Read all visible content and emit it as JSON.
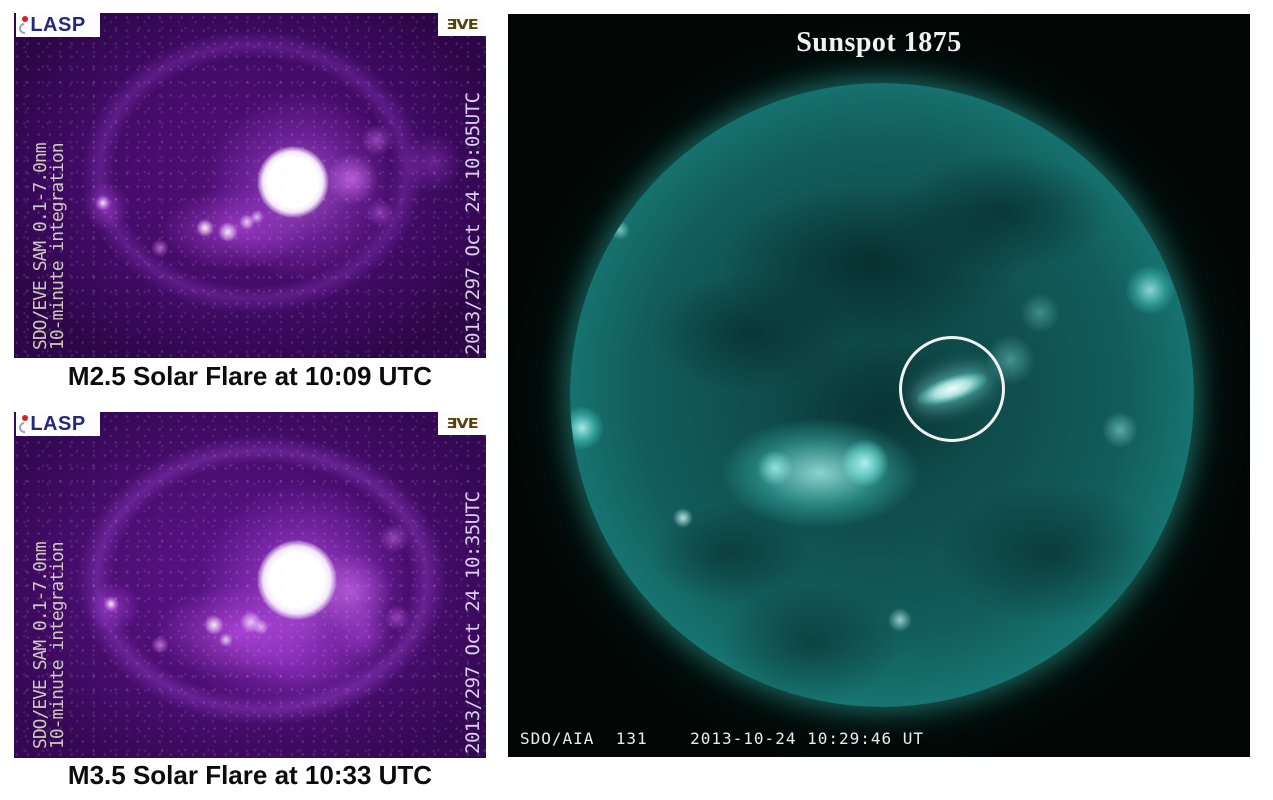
{
  "colors": {
    "page_bg": "#ffffff",
    "flare_panel_base": "#470c6b",
    "flare_core": "#ffffff",
    "flare_glow_magenta": "#cc50f5",
    "sun_panel_bg": "#020604",
    "sun_teal": "#23a49c",
    "sun_limb_bright": "#43ded2",
    "annotation_circle": "#f2f2f2",
    "caption_text": "#0c0c0c",
    "title_text": "#f2f2f2",
    "footer_text": "#ececec",
    "instrument_label_text": "#cfc8bc",
    "timestamp_label_text": "#d8d0ea",
    "lasp_logo_blue": "#232a7c",
    "lasp_logo_red": "#d62222",
    "eve_logo_gold": "#57430a"
  },
  "flare_panels": [
    {
      "lasp_logo": "LASP",
      "eve_logo": "ƎVE",
      "instrument_label": "SDO/EVE SAM 0.1-7.0nm\n10-minute integration",
      "timestamp": "2013/297 Oct 24 10:05UTC",
      "caption": "M2.5 Solar Flare at 10:09 UTC"
    },
    {
      "lasp_logo": "LASP",
      "eve_logo": "ƎVE",
      "instrument_label": "SDO/EVE SAM 0.1-7.0nm\n10-minute integration",
      "timestamp": "2013/297 Oct 24 10:35UTC",
      "caption": "M3.5 Solar Flare at 10:33 UTC"
    }
  ],
  "sun_panel": {
    "title": "Sunspot 1875",
    "footer": "SDO/AIA  131    2013-10-24 10:29:46 UT"
  }
}
